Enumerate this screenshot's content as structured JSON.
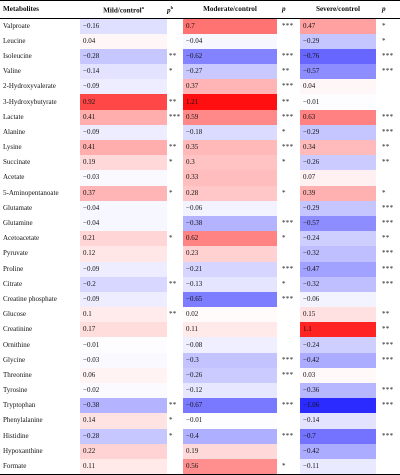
{
  "headers": {
    "metabolites": "Metabolites",
    "mild": "Mild/control",
    "mild_sup": "a",
    "p1": "p",
    "p1_sup": "b",
    "moderate": "Moderate/control",
    "p2": "p",
    "severe": "Severe/control",
    "p3": "p"
  },
  "colors": {
    "positive_max": "#f00000",
    "negative_max": "#0000f0",
    "neutral": "#ffffff"
  },
  "rows": [
    {
      "name": "Valproate",
      "mild": "−0.16",
      "mild_v": -0.16,
      "p1": "",
      "mod": "0.7",
      "mod_v": 0.7,
      "p2": "***",
      "sev": "0.47",
      "sev_v": 0.47,
      "p3": "*"
    },
    {
      "name": "Leucine",
      "mild": "0.04",
      "mild_v": 0.04,
      "p1": "",
      "mod": "−0.04",
      "mod_v": -0.04,
      "p2": "",
      "sev": "−0.29",
      "sev_v": -0.29,
      "p3": "*"
    },
    {
      "name": "Isoleucine",
      "mild": "−0.28",
      "mild_v": -0.28,
      "p1": "**",
      "mod": "−0.62",
      "mod_v": -0.62,
      "p2": "***",
      "sev": "−0.76",
      "sev_v": -0.76,
      "p3": "***"
    },
    {
      "name": "Valine",
      "mild": "−0.14",
      "mild_v": -0.14,
      "p1": "*",
      "mod": "−0.27",
      "mod_v": -0.27,
      "p2": "**",
      "sev": "−0.57",
      "sev_v": -0.57,
      "p3": "***"
    },
    {
      "name": "2-Hydroxyvalerate",
      "mild": "−0.09",
      "mild_v": -0.09,
      "p1": "",
      "mod": "0.37",
      "mod_v": 0.37,
      "p2": "***",
      "sev": "0.04",
      "sev_v": 0.04,
      "p3": ""
    },
    {
      "name": "3-Hydroxybutyrate",
      "mild": "0.92",
      "mild_v": 0.92,
      "p1": "**",
      "mod": "1.21",
      "mod_v": 1.21,
      "p2": "**",
      "sev": "−0.01",
      "sev_v": -0.01,
      "p3": ""
    },
    {
      "name": "Lactate",
      "mild": "0.41",
      "mild_v": 0.41,
      "p1": "***",
      "mod": "0.59",
      "mod_v": 0.59,
      "p2": "***",
      "sev": "0.63",
      "sev_v": 0.63,
      "p3": "***"
    },
    {
      "name": "Alanine",
      "mild": "−0.09",
      "mild_v": -0.09,
      "p1": "",
      "mod": "−0.18",
      "mod_v": -0.18,
      "p2": "*",
      "sev": "−0.29",
      "sev_v": -0.29,
      "p3": "***"
    },
    {
      "name": "Lysine",
      "mild": "0.41",
      "mild_v": 0.41,
      "p1": "**",
      "mod": "0.35",
      "mod_v": 0.35,
      "p2": "***",
      "sev": "0.34",
      "sev_v": 0.34,
      "p3": "**"
    },
    {
      "name": "Succinate",
      "mild": "0.19",
      "mild_v": 0.19,
      "p1": "*",
      "mod": "0.3",
      "mod_v": 0.3,
      "p2": "*",
      "sev": "−0.26",
      "sev_v": -0.26,
      "p3": "**"
    },
    {
      "name": "Acetate",
      "mild": "−0.03",
      "mild_v": -0.03,
      "p1": "",
      "mod": "0.33",
      "mod_v": 0.33,
      "p2": "",
      "sev": "0.07",
      "sev_v": 0.07,
      "p3": ""
    },
    {
      "name": "5-Aminopentanoate",
      "mild": "0.37",
      "mild_v": 0.37,
      "p1": "*",
      "mod": "0.28",
      "mod_v": 0.28,
      "p2": "*",
      "sev": "0.39",
      "sev_v": 0.39,
      "p3": "*"
    },
    {
      "name": "Glutamate",
      "mild": "−0.04",
      "mild_v": -0.04,
      "p1": "",
      "mod": "−0.06",
      "mod_v": -0.06,
      "p2": "",
      "sev": "−0.29",
      "sev_v": -0.29,
      "p3": "***"
    },
    {
      "name": "Glutamine",
      "mild": "−0.04",
      "mild_v": -0.04,
      "p1": "",
      "mod": "−0.38",
      "mod_v": -0.38,
      "p2": "***",
      "sev": "−0.57",
      "sev_v": -0.57,
      "p3": "***"
    },
    {
      "name": "Acetoacetate",
      "mild": "0.21",
      "mild_v": 0.21,
      "p1": "*",
      "mod": "0.62",
      "mod_v": 0.62,
      "p2": "*",
      "sev": "−0.24",
      "sev_v": -0.24,
      "p3": "**"
    },
    {
      "name": "Pyruvate",
      "mild": "0.12",
      "mild_v": 0.12,
      "p1": "",
      "mod": "0.23",
      "mod_v": 0.23,
      "p2": "",
      "sev": "−0.32",
      "sev_v": -0.32,
      "p3": "***"
    },
    {
      "name": "Proline",
      "mild": "−0.09",
      "mild_v": -0.09,
      "p1": "",
      "mod": "−0.21",
      "mod_v": -0.21,
      "p2": "***",
      "sev": "−0.47",
      "sev_v": -0.47,
      "p3": "***"
    },
    {
      "name": "Citrate",
      "mild": "−0.2",
      "mild_v": -0.2,
      "p1": "**",
      "mod": "−0.13",
      "mod_v": -0.13,
      "p2": "*",
      "sev": "−0.32",
      "sev_v": -0.32,
      "p3": "***"
    },
    {
      "name": "Creatine phosphate",
      "mild": "−0.09",
      "mild_v": -0.09,
      "p1": "",
      "mod": "−0.65",
      "mod_v": -0.65,
      "p2": "***",
      "sev": "−0.06",
      "sev_v": -0.06,
      "p3": ""
    },
    {
      "name": "Glucose",
      "mild": "0.1",
      "mild_v": 0.1,
      "p1": "**",
      "mod": "0.02",
      "mod_v": 0.02,
      "p2": "",
      "sev": "0.15",
      "sev_v": 0.15,
      "p3": "**"
    },
    {
      "name": "Creatinine",
      "mild": "0.17",
      "mild_v": 0.17,
      "p1": "",
      "mod": "0.11",
      "mod_v": 0.11,
      "p2": "",
      "sev": "1.1",
      "sev_v": 1.1,
      "p3": "**"
    },
    {
      "name": "Ornithine",
      "mild": "−0.01",
      "mild_v": -0.01,
      "p1": "",
      "mod": "−0.08",
      "mod_v": -0.08,
      "p2": "",
      "sev": "−0.24",
      "sev_v": -0.24,
      "p3": "***"
    },
    {
      "name": "Glycine",
      "mild": "−0.03",
      "mild_v": -0.03,
      "p1": "",
      "mod": "−0.3",
      "mod_v": -0.3,
      "p2": "***",
      "sev": "−0.42",
      "sev_v": -0.42,
      "p3": "***"
    },
    {
      "name": "Threonine",
      "mild": "0.06",
      "mild_v": 0.06,
      "p1": "",
      "mod": "−0.26",
      "mod_v": -0.26,
      "p2": "***",
      "sev": "0.03",
      "sev_v": 0.03,
      "p3": ""
    },
    {
      "name": "Tyrosine",
      "mild": "−0.02",
      "mild_v": -0.02,
      "p1": "",
      "mod": "−0.12",
      "mod_v": -0.12,
      "p2": "",
      "sev": "−0.36",
      "sev_v": -0.36,
      "p3": "***"
    },
    {
      "name": "Tryptophan",
      "mild": "−0.38",
      "mild_v": -0.38,
      "p1": "**",
      "mod": "−0.67",
      "mod_v": -0.67,
      "p2": "***",
      "sev": "−1.06",
      "sev_v": -1.06,
      "p3": "***"
    },
    {
      "name": "Phenylalanine",
      "mild": "0.14",
      "mild_v": 0.14,
      "p1": "*",
      "mod": "−0.01",
      "mod_v": -0.01,
      "p2": "",
      "sev": "−0.14",
      "sev_v": -0.14,
      "p3": ""
    },
    {
      "name": "Histidine",
      "mild": "−0.28",
      "mild_v": -0.28,
      "p1": "*",
      "mod": "−0.4",
      "mod_v": -0.4,
      "p2": "***",
      "sev": "−0.7",
      "sev_v": -0.7,
      "p3": "***"
    },
    {
      "name": "Hypoxanthine",
      "mild": "0.22",
      "mild_v": 0.22,
      "p1": "",
      "mod": "0.19",
      "mod_v": 0.19,
      "p2": "",
      "sev": "−0.42",
      "sev_v": -0.42,
      "p3": ""
    },
    {
      "name": "Formate",
      "mild": "0.11",
      "mild_v": 0.11,
      "p1": "",
      "mod": "0.56",
      "mod_v": 0.56,
      "p2": "*",
      "sev": "−0.11",
      "sev_v": -0.11,
      "p3": ""
    }
  ]
}
